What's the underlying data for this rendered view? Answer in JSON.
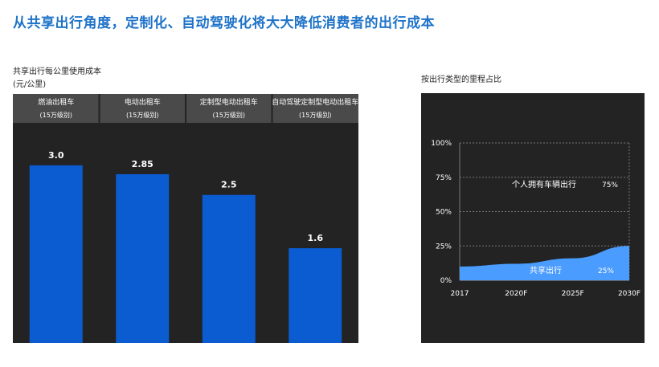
{
  "headline": "从共享出行角度，定制化、自动驾驶化将大大降低消费者的出行成本",
  "left_chart": {
    "caption_line1": "共享出行每公里使用成本",
    "caption_line2": "(元/公里)"
  },
  "right_chart": {
    "caption": "按出行类型的里程占比"
  },
  "colors": {
    "headline": "#1f73c9",
    "panel_bg": "#232323",
    "header_bg": "#4a4a4a",
    "bar": "#0b5bd1",
    "area_shared": "#4a9cff",
    "text_light": "#ffffff"
  },
  "chart_data": [
    {
      "type": "bar",
      "categories": [
        "燃油出租车",
        "电动出租车",
        "定制型电动出租车",
        "自动驾驶定制型电动出租车"
      ],
      "category_notes": [
        "(15万级别)",
        "(15万级别)",
        "(15万级别)",
        "(15万级别)"
      ],
      "values": [
        3.0,
        2.85,
        2.5,
        1.6
      ],
      "value_labels": [
        "3.0",
        "2.85",
        "2.5",
        "1.6"
      ],
      "title": "",
      "ylim": [
        0,
        3.5
      ]
    },
    {
      "type": "area",
      "x": [
        "2017",
        "2020F",
        "2025F",
        "2030F"
      ],
      "series": [
        {
          "name": "共享出行",
          "values": [
            10,
            12,
            16,
            25
          ],
          "label_value": "25%"
        },
        {
          "name": "个人拥有车辆出行",
          "values": [
            90,
            88,
            84,
            75
          ],
          "label_value": "75%"
        }
      ],
      "y_ticks": [
        "0%",
        "25%",
        "50%",
        "75%",
        "100%"
      ],
      "ylim": [
        0,
        100
      ],
      "grid": true
    }
  ]
}
